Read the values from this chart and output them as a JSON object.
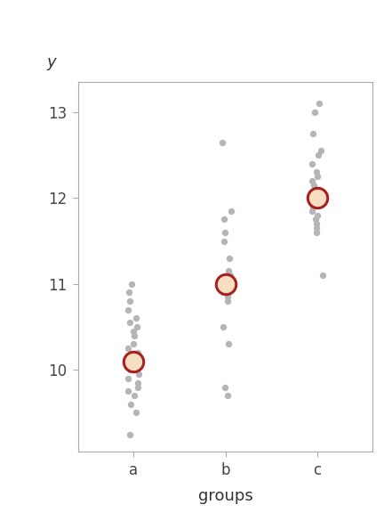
{
  "title": "",
  "xlabel": "groups",
  "ylabel": "y",
  "xlim": [
    0.4,
    3.6
  ],
  "ylim": [
    9.05,
    13.35
  ],
  "yticks": [
    10,
    11,
    12,
    13
  ],
  "xtick_labels": [
    "a",
    "b",
    "c"
  ],
  "group_means": [
    10.1,
    11.0,
    12.0
  ],
  "group_a": [
    9.25,
    9.5,
    9.6,
    9.7,
    9.75,
    9.8,
    9.85,
    9.9,
    9.95,
    10.0,
    10.05,
    10.1,
    10.15,
    10.2,
    10.25,
    10.3,
    10.4,
    10.45,
    10.5,
    10.55,
    10.6,
    10.7,
    10.8,
    10.9,
    11.0
  ],
  "group_b": [
    9.7,
    9.8,
    10.3,
    10.5,
    10.8,
    10.85,
    10.9,
    10.95,
    11.0,
    11.05,
    11.1,
    11.15,
    11.3,
    11.5,
    11.6,
    11.75,
    11.85,
    12.65
  ],
  "group_c": [
    11.1,
    11.6,
    11.65,
    11.7,
    11.75,
    11.8,
    11.85,
    11.9,
    11.95,
    12.0,
    12.05,
    12.1,
    12.15,
    12.2,
    12.25,
    12.3,
    12.4,
    12.5,
    12.55,
    12.75,
    13.0,
    13.1
  ],
  "dot_color": "#b5b5b5",
  "mean_fill": "#f5dfc0",
  "mean_edge": "#a82020",
  "background_color": "#ffffff",
  "panel_color": "#ffffff",
  "spine_color": "#aaaaaa",
  "tick_color": "#aaaaaa"
}
